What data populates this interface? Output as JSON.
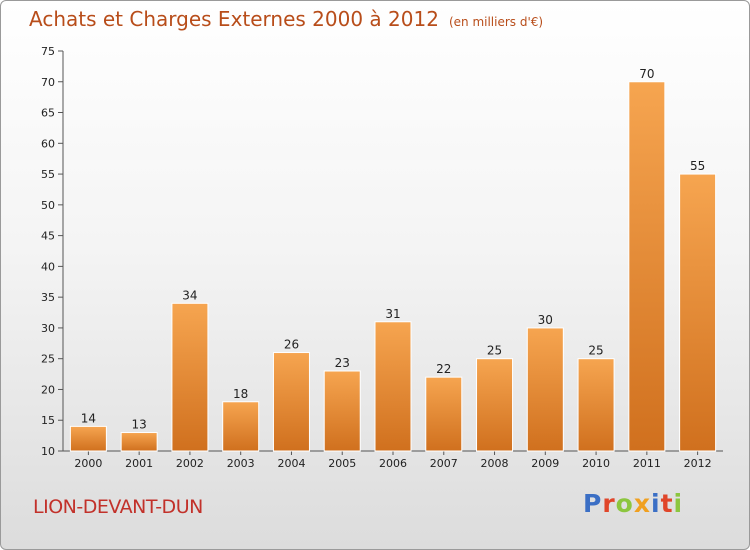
{
  "header": {
    "title": "Achats et Charges Externes 2000 à 2012",
    "subtitle": "(en milliers d'€)"
  },
  "footer": {
    "commune": "LION-DEVANT-DUN",
    "logo": "Proxiti"
  },
  "colors": {
    "bar_light": "#f6a550",
    "bar_dark": "#d0701e",
    "title": "#b84d1a",
    "commune": "#c2312a",
    "logo": [
      "#3b6fc5",
      "#e0462a",
      "#8cc63f",
      "#f0a020",
      "#3b6fc5",
      "#e0462a",
      "#8cc63f"
    ]
  },
  "chart_data": {
    "type": "bar",
    "title": "Achats et Charges Externes 2000 à 2012",
    "subtitle": "(en milliers d'€)",
    "categories": [
      "2000",
      "2001",
      "2002",
      "2003",
      "2004",
      "2005",
      "2006",
      "2007",
      "2008",
      "2009",
      "2010",
      "2011",
      "2012"
    ],
    "values": [
      14,
      13,
      34,
      18,
      26,
      23,
      31,
      22,
      25,
      30,
      25,
      70,
      55
    ],
    "ylim": [
      10,
      75
    ],
    "yticks": [
      10,
      15,
      20,
      25,
      30,
      35,
      40,
      45,
      50,
      55,
      60,
      65,
      70,
      75
    ],
    "grid": false,
    "data_labels": true
  }
}
